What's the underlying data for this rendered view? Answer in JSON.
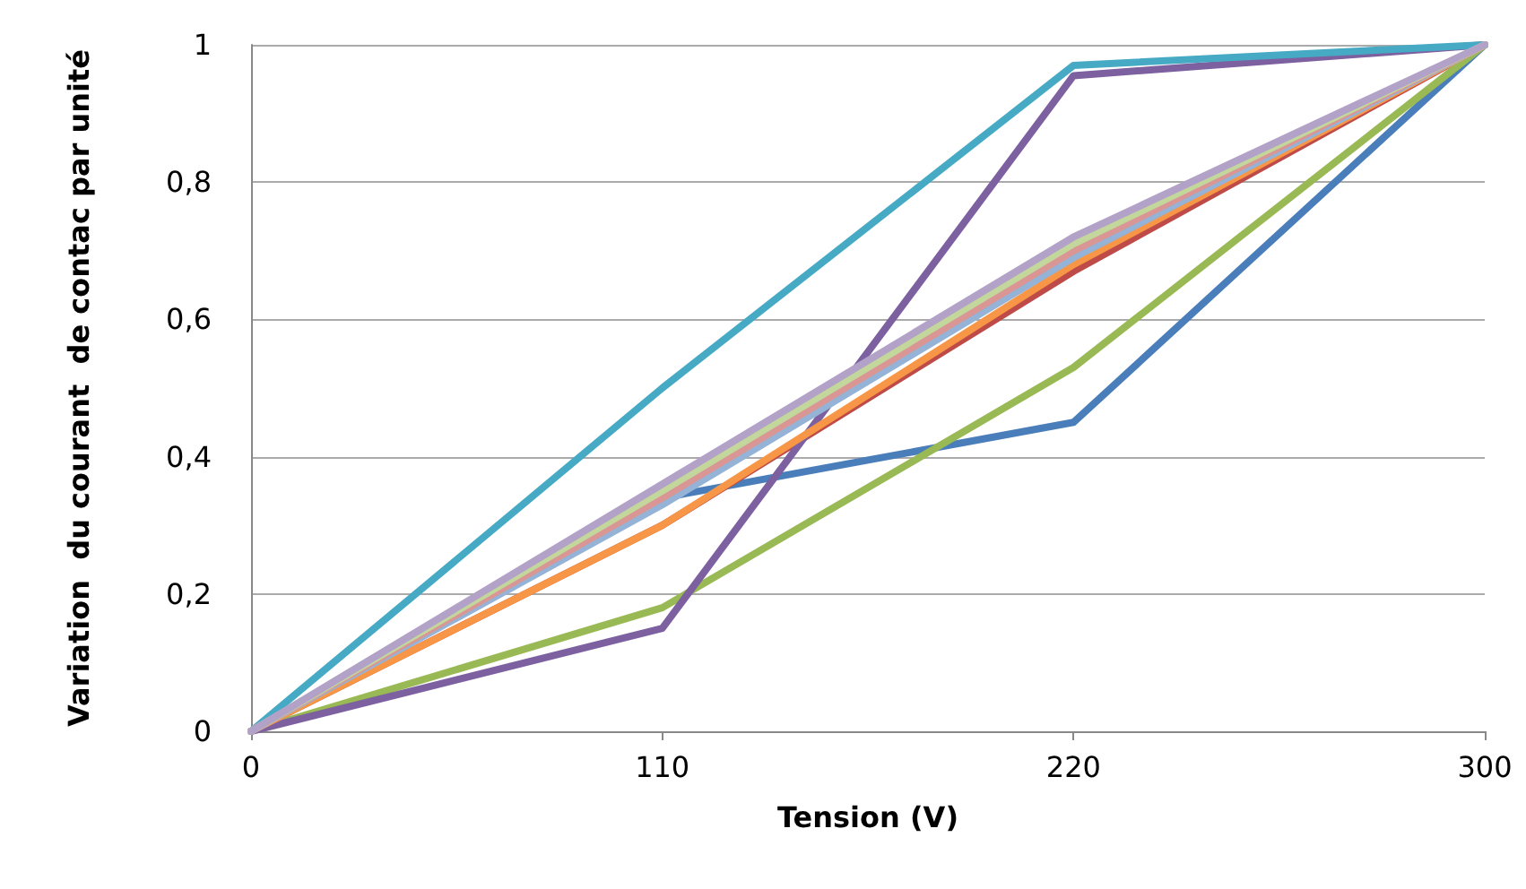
{
  "chart_data": {
    "type": "line",
    "xlabel": "Tension (V)",
    "ylabel": "Variation  du courant  de contac par unité",
    "categories": [
      "0",
      "110",
      "220",
      "300"
    ],
    "series": [
      {
        "color": "#4a7ebb",
        "values": [
          0,
          0.34,
          0.45,
          1
        ]
      },
      {
        "color": "#be4b48",
        "values": [
          0,
          0.3,
          0.67,
          1
        ]
      },
      {
        "color": "#98b954",
        "values": [
          0,
          0.18,
          0.53,
          1
        ]
      },
      {
        "color": "#7d60a0",
        "values": [
          0,
          0.15,
          0.955,
          1
        ]
      },
      {
        "color": "#46aac5",
        "values": [
          0,
          0.5,
          0.97,
          1
        ]
      },
      {
        "color": "#f79646",
        "values": [
          0,
          0.3,
          0.68,
          1
        ]
      },
      {
        "color": "#95b3d7",
        "values": [
          0,
          0.33,
          0.69,
          1
        ]
      },
      {
        "color": "#d99694",
        "values": [
          0,
          0.34,
          0.7,
          1
        ]
      },
      {
        "color": "#c3d69b",
        "values": [
          0,
          0.35,
          0.71,
          1
        ]
      },
      {
        "color": "#b3a2c7",
        "values": [
          0,
          0.36,
          0.72,
          1
        ]
      }
    ],
    "ylim": [
      0,
      1
    ],
    "yticks": [
      "0",
      {
        "value": 0.2,
        "label": "0,2"
      },
      {
        "value": 0.4,
        "label": "0,4"
      },
      {
        "value": 0.6,
        "label": "0,6"
      },
      {
        "value": 0.8,
        "label": "0,8"
      },
      "1"
    ],
    "grid": "y",
    "marker": "none"
  }
}
